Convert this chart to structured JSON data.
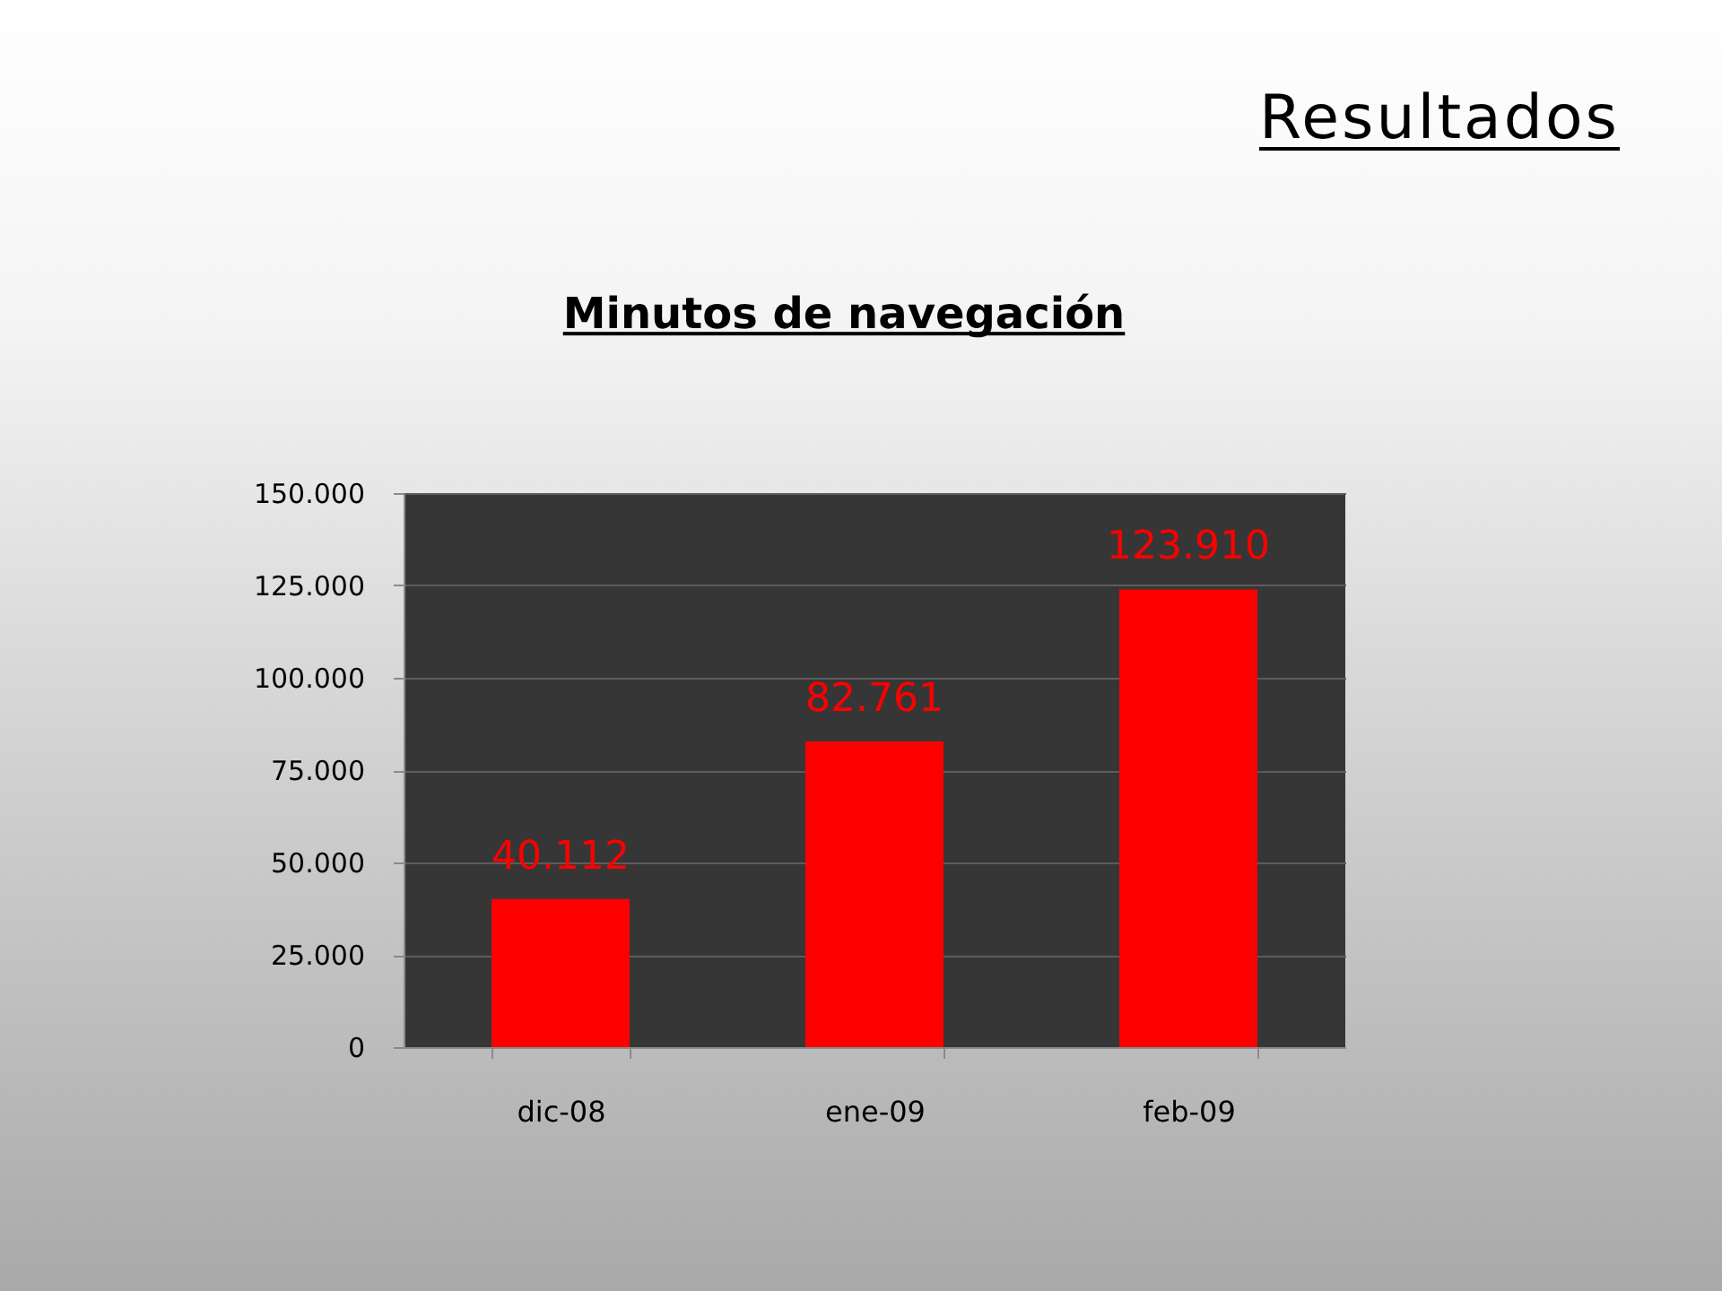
{
  "chart_data": {
    "type": "bar",
    "title": "Resultados",
    "subtitle": "Minutos de navegación",
    "categories": [
      "dic-08",
      "ene-09",
      "feb-09"
    ],
    "values": [
      40112,
      82761,
      123910
    ],
    "color": "#ff0000",
    "value_labels": [
      "40.112",
      "82.761",
      "123.910"
    ],
    "ylim": [
      0,
      150000
    ],
    "yticks": [
      0,
      {
        "value": 25000,
        "label": "25.000"
      },
      {
        "value": 50000,
        "label": "50.000"
      },
      {
        "value": 75000,
        "label": "75.000"
      },
      {
        "value": 100000,
        "label": "100.000"
      },
      {
        "value": 125000,
        "label": "125.000"
      },
      {
        "value": 150000,
        "label": "150.000"
      }
    ],
    "grid": "y"
  }
}
